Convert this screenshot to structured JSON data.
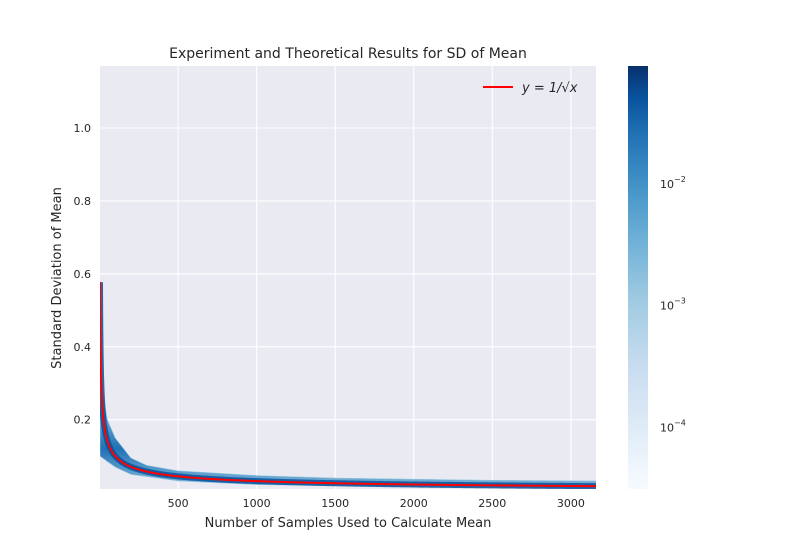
{
  "chart_data": {
    "type": "heatmap",
    "title": "Experiment and Theoretical Results for SD of Mean",
    "xlabel": "Number of Samples Used to Calculate Mean",
    "ylabel": "Standard Deviation of Mean",
    "xlim": [
      3,
      3160
    ],
    "ylim": [
      0.01,
      1.17
    ],
    "xticks": [
      500,
      1000,
      1500,
      2000,
      2500,
      3000
    ],
    "yticks": [
      0.2,
      0.4,
      0.6,
      0.8,
      1.0
    ],
    "xtick_labels": [
      "500",
      "1000",
      "1500",
      "2000",
      "2500",
      "3000"
    ],
    "ytick_labels": [
      "0.2",
      "0.4",
      "0.6",
      "0.8",
      "1.0"
    ],
    "grid": true,
    "legend": {
      "position": "top-right",
      "entries": [
        {
          "label": "y = 1/√x",
          "color": "#ff0000"
        }
      ]
    },
    "series": [
      {
        "type": "line",
        "function": "1/sqrt(x)",
        "x_start": 3,
        "x_end": 3160,
        "color": "#ff0000"
      }
    ],
    "heatmap": {
      "colormap": "Blues",
      "scale": "log",
      "density_band_upper": [
        [
          3,
          0.32
        ],
        [
          50,
          0.2
        ],
        [
          100,
          0.15
        ],
        [
          200,
          0.095
        ],
        [
          300,
          0.075
        ],
        [
          500,
          0.06
        ],
        [
          1000,
          0.047
        ],
        [
          1500,
          0.04
        ],
        [
          2000,
          0.037
        ],
        [
          2500,
          0.034
        ],
        [
          3160,
          0.032
        ]
      ],
      "density_band_lower": [
        [
          3,
          0.1
        ],
        [
          50,
          0.085
        ],
        [
          100,
          0.07
        ],
        [
          200,
          0.05
        ],
        [
          500,
          0.032
        ],
        [
          1000,
          0.022
        ],
        [
          2000,
          0.016
        ],
        [
          3160,
          0.013
        ]
      ]
    },
    "colorbar": {
      "scale": "log",
      "range": [
        3e-05,
        0.09
      ],
      "ticks": [
        {
          "value": 0.01,
          "base": "10",
          "exponent": "−2"
        },
        {
          "value": 0.001,
          "base": "10",
          "exponent": "−3"
        },
        {
          "value": 0.0001,
          "base": "10",
          "exponent": "−4"
        }
      ]
    }
  }
}
